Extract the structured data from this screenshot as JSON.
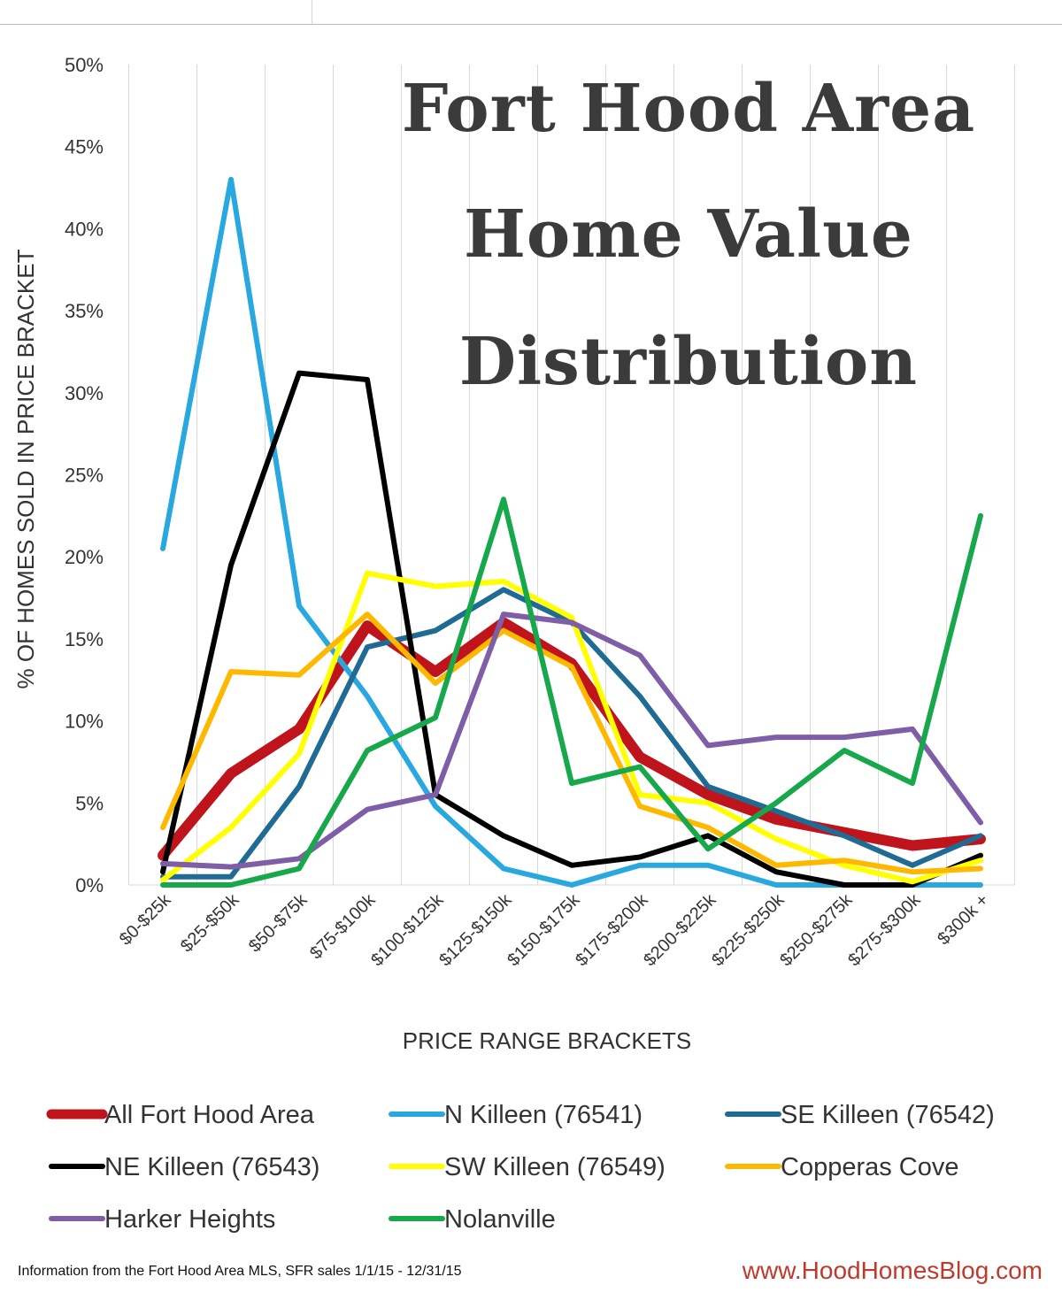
{
  "chart_data": {
    "type": "line",
    "title_lines": [
      "Fort Hood Area",
      "Home Value",
      "Distribution"
    ],
    "xlabel": "PRICE RANGE BRACKETS",
    "ylabel": "% OF HOMES SOLD IN PRICE BRACKET",
    "ylim": [
      0,
      50
    ],
    "yticks": [
      "0%",
      "5%",
      "10%",
      "15%",
      "20%",
      "25%",
      "30%",
      "35%",
      "40%",
      "45%",
      "50%"
    ],
    "grid": "vertical",
    "legend_position": "bottom",
    "categories": [
      "$0-$25k",
      "$25-$50k",
      "$50-$75k",
      "$75-$100k",
      "$100-$125k",
      "$125-$150k",
      "$150-$175k",
      "$175-$200k",
      "$200-$225k",
      "$225-$250k",
      "$250-$275k",
      "$275-$300k",
      "$300k +"
    ],
    "series": [
      {
        "name": "All Fort Hood Area",
        "color": "#c0141d",
        "values": [
          1.8,
          6.8,
          9.5,
          15.8,
          13.0,
          16.0,
          13.5,
          7.8,
          5.5,
          4.0,
          3.2,
          2.4,
          2.8
        ]
      },
      {
        "name": "N Killeen (76541)",
        "color": "#29a8e0",
        "values": [
          20.5,
          43.0,
          17.0,
          11.5,
          4.8,
          1.0,
          0.0,
          1.2,
          1.2,
          0.0,
          0.0,
          0.0,
          0.0
        ]
      },
      {
        "name": "SE Killeen (76542)",
        "color": "#1f6b94",
        "values": [
          0.5,
          0.5,
          6.0,
          14.5,
          15.5,
          18.0,
          16.0,
          11.5,
          6.0,
          4.5,
          3.0,
          1.2,
          3.0
        ]
      },
      {
        "name": "NE Killeen (76543)",
        "color": "#000000",
        "values": [
          0.8,
          19.5,
          31.2,
          30.8,
          5.5,
          3.0,
          1.2,
          1.7,
          3.0,
          0.8,
          0.0,
          0.0,
          1.8
        ]
      },
      {
        "name": "SW Killeen (76549)",
        "color": "#ffff00",
        "values": [
          0.3,
          3.5,
          8.0,
          19.0,
          18.2,
          18.5,
          16.3,
          5.5,
          5.0,
          2.8,
          1.2,
          0.2,
          1.5
        ]
      },
      {
        "name": "Copperas Cove",
        "color": "#ffb800",
        "values": [
          3.5,
          13.0,
          12.8,
          16.5,
          12.3,
          15.5,
          13.3,
          4.8,
          3.5,
          1.2,
          1.5,
          0.8,
          1.0
        ]
      },
      {
        "name": "Harker Heights",
        "color": "#7f5ea8",
        "values": [
          1.3,
          1.1,
          1.6,
          4.6,
          5.5,
          16.5,
          16.0,
          14.0,
          8.5,
          9.0,
          9.0,
          9.5,
          3.8
        ]
      },
      {
        "name": "Nolanville",
        "color": "#16a84a",
        "values": [
          0.0,
          0.0,
          1.0,
          8.2,
          10.2,
          23.5,
          6.2,
          7.2,
          2.2,
          5.0,
          8.2,
          6.2,
          22.5
        ]
      }
    ]
  },
  "footer": {
    "note": "Information from the Fort Hood Area MLS, SFR sales 1/1/15 - 12/31/15",
    "url": "www.HoodHomesBlog.com"
  }
}
